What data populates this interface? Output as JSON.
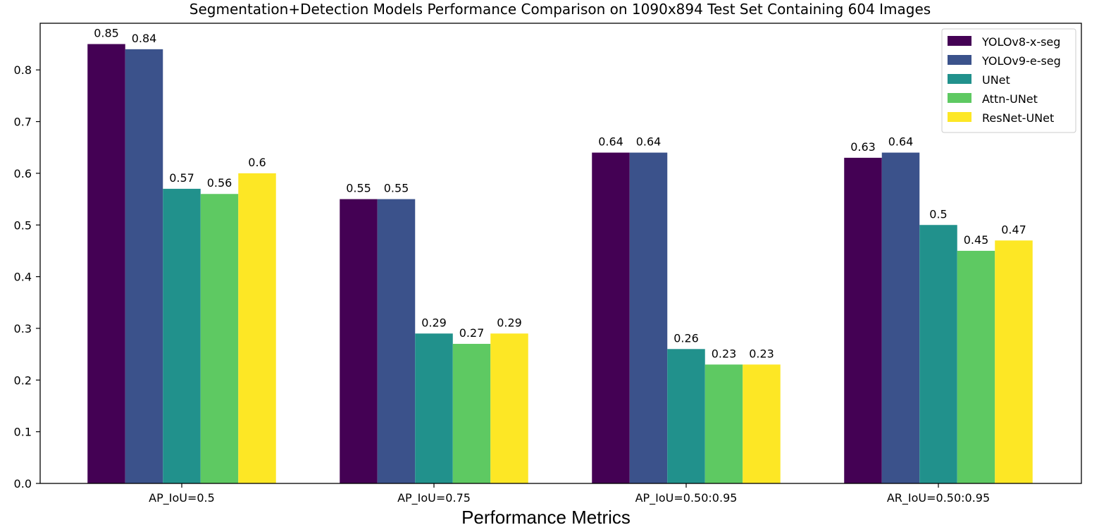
{
  "chart_data": {
    "type": "bar",
    "title": "Segmentation+Detection Models Performance Comparison on 1090x894 Test Set Containing 604 Images",
    "xlabel": "Performance Metrics",
    "ylabel": "",
    "categories": [
      "AP_IoU=0.5",
      "AP_IoU=0.75",
      "AP_IoU=0.50:0.95",
      "AR_IoU=0.50:0.95"
    ],
    "series": [
      {
        "name": "YOLOv8-x-seg",
        "color": "#440154",
        "values": [
          0.85,
          0.55,
          0.64,
          0.63
        ],
        "labels": [
          "0.85",
          "0.55",
          "0.64",
          "0.63"
        ]
      },
      {
        "name": "YOLOv9-e-seg",
        "color": "#3b528b",
        "values": [
          0.84,
          0.55,
          0.64,
          0.64
        ],
        "labels": [
          "0.84",
          "0.55",
          "0.64",
          "0.64"
        ]
      },
      {
        "name": "UNet",
        "color": "#21918c",
        "values": [
          0.57,
          0.29,
          0.26,
          0.5
        ],
        "labels": [
          "0.57",
          "0.29",
          "0.26",
          "0.5"
        ]
      },
      {
        "name": "Attn-UNet",
        "color": "#5ec962",
        "values": [
          0.56,
          0.27,
          0.23,
          0.45
        ],
        "labels": [
          "0.56",
          "0.27",
          "0.23",
          "0.45"
        ]
      },
      {
        "name": "ResNet-UNet",
        "color": "#fde725",
        "values": [
          0.6,
          0.29,
          0.23,
          0.47
        ],
        "labels": [
          "0.6",
          "0.29",
          "0.23",
          "0.47"
        ]
      }
    ],
    "yticks": [
      "0.0",
      "0.1",
      "0.2",
      "0.3",
      "0.4",
      "0.5",
      "0.6",
      "0.7",
      "0.8"
    ],
    "ylim": [
      0,
      0.9
    ],
    "grid": false,
    "legend_position": "top-right"
  }
}
